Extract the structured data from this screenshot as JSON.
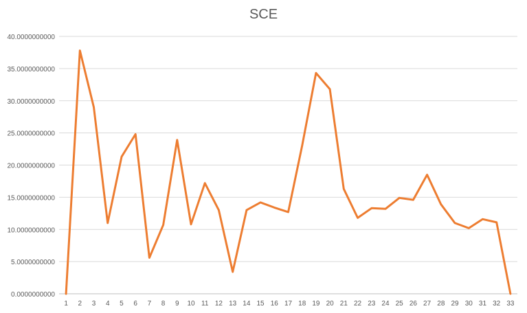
{
  "chart_data": {
    "type": "line",
    "title": "SCE",
    "xlabel": "",
    "ylabel": "",
    "categories": [
      "1",
      "2",
      "3",
      "4",
      "5",
      "6",
      "7",
      "8",
      "9",
      "10",
      "11",
      "12",
      "13",
      "14",
      "15",
      "16",
      "17",
      "18",
      "19",
      "20",
      "21",
      "22",
      "23",
      "24",
      "25",
      "26",
      "27",
      "28",
      "29",
      "30",
      "31",
      "32",
      "33"
    ],
    "values": [
      0.0,
      37.8,
      29.0,
      11.0,
      21.3,
      24.8,
      5.6,
      10.7,
      23.9,
      10.8,
      17.2,
      13.0,
      3.4,
      13.0,
      14.2,
      13.4,
      12.7,
      23.0,
      34.3,
      31.8,
      16.3,
      11.8,
      13.3,
      13.2,
      14.9,
      14.6,
      18.5,
      13.9,
      11.0,
      10.2,
      11.6,
      11.1,
      0.0
    ],
    "ylim": [
      0,
      40
    ],
    "yticks": [
      0,
      5,
      10,
      15,
      20,
      25,
      30,
      35,
      40
    ],
    "ytick_labels": [
      "0.0000000000",
      "5.0000000000",
      "10.0000000000",
      "15.0000000000",
      "20.0000000000",
      "25.0000000000",
      "30.0000000000",
      "35.0000000000",
      "40.0000000000"
    ],
    "grid": true,
    "legend": false,
    "colors": {
      "line": "#ED7D31",
      "grid": "#D9D9D9",
      "text": "#595959",
      "axis": "#BFBFBF"
    }
  }
}
